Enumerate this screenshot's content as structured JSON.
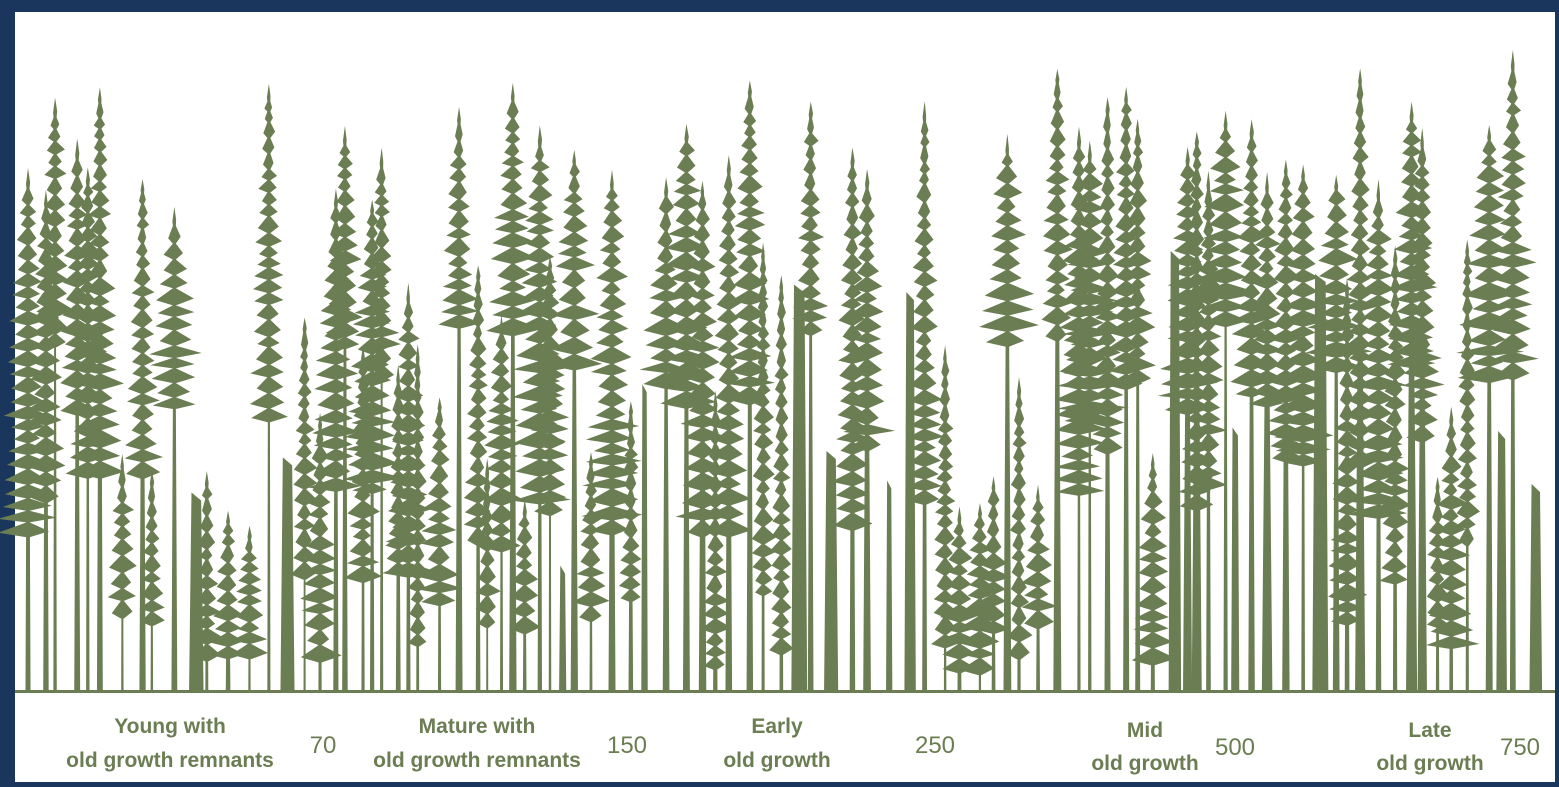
{
  "stages": [
    {
      "label": [
        "Young with",
        "old growth remnants"
      ],
      "age": 70
    },
    {
      "label": [
        "Mature with",
        "old growth remnants"
      ],
      "age": 150
    },
    {
      "label": [
        "Early",
        "old growth"
      ],
      "age": 250
    },
    {
      "label": [
        "Mid",
        "old growth"
      ],
      "age": 500
    },
    {
      "label": [
        "Late",
        "old growth"
      ],
      "age": 750
    }
  ]
}
